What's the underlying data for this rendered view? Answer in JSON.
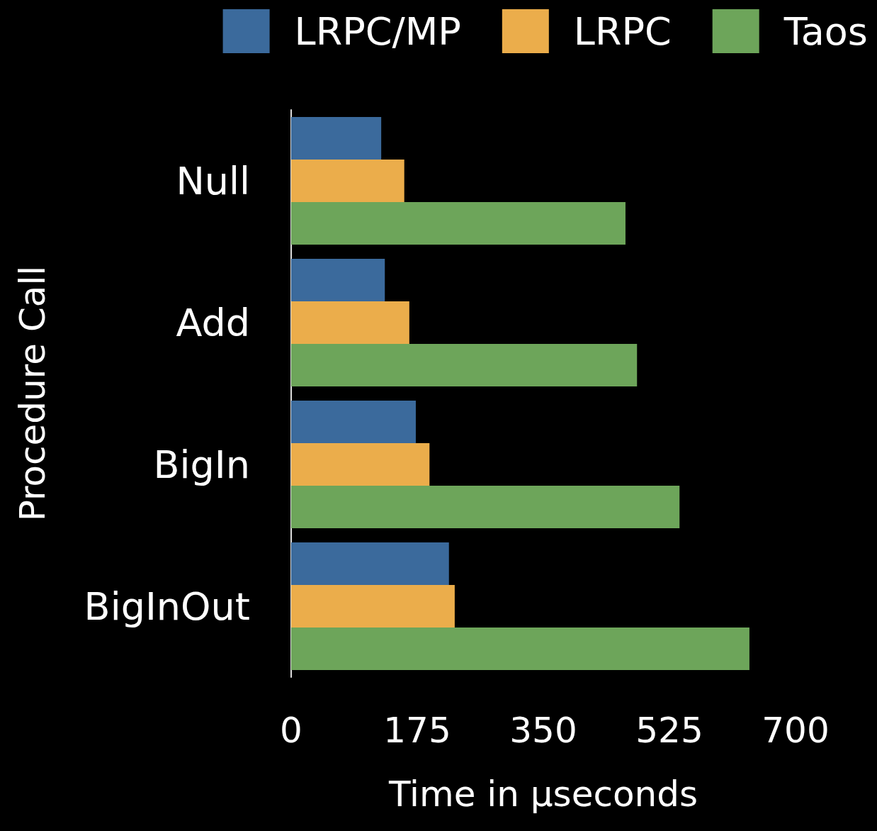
{
  "chart_data": {
    "type": "bar",
    "orientation": "horizontal",
    "xlabel": "Time in µseconds",
    "ylabel": "Procedure Call",
    "categories": [
      "Null",
      "Add",
      "BigIn",
      "BigInOut"
    ],
    "series": [
      {
        "name": "LRPC/MP",
        "color": "#3b6a9c",
        "values": [
          125,
          130,
          173,
          219
        ]
      },
      {
        "name": "LRPC",
        "color": "#ebad4b",
        "values": [
          157,
          164,
          192,
          227
        ]
      },
      {
        "name": "Taos",
        "color": "#6da55a",
        "values": [
          464,
          480,
          539,
          636
        ]
      }
    ],
    "xlim": [
      0,
      700
    ],
    "xticks": [
      0,
      175,
      350,
      525,
      700
    ],
    "grid": false,
    "legend": "top right"
  }
}
